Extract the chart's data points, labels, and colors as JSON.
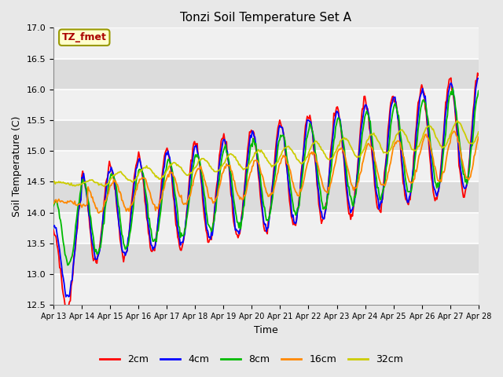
{
  "title": "Tonzi Soil Temperature Set A",
  "xlabel": "Time",
  "ylabel": "Soil Temperature (C)",
  "ylim": [
    12.5,
    17.0
  ],
  "legend_label": "TZ_fmet",
  "series_labels": [
    "2cm",
    "4cm",
    "8cm",
    "16cm",
    "32cm"
  ],
  "series_colors": [
    "#ff0000",
    "#0000ff",
    "#00bb00",
    "#ff8800",
    "#cccc00"
  ],
  "xtick_labels": [
    "Apr 13",
    "Apr 14",
    "Apr 15",
    "Apr 16",
    "Apr 17",
    "Apr 18",
    "Apr 19",
    "Apr 20",
    "Apr 21",
    "Apr 22",
    "Apr 23",
    "Apr 24",
    "Apr 25",
    "Apr 26",
    "Apr 27",
    "Apr 28"
  ],
  "n_points": 480,
  "days": 15
}
